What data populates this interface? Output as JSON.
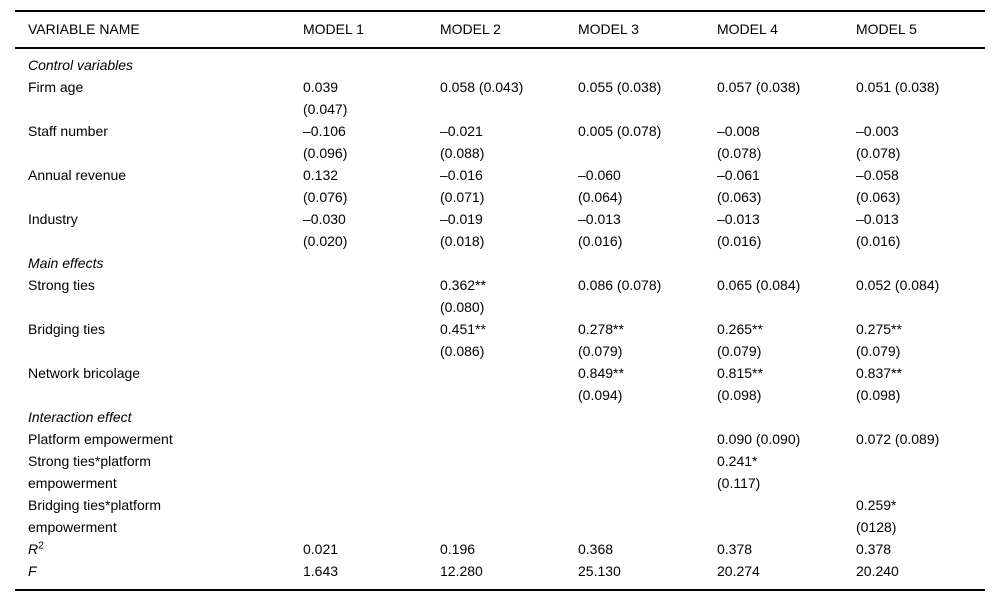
{
  "table": {
    "columns": [
      "VARIABLE NAME",
      "MODEL 1",
      "MODEL 2",
      "MODEL 3",
      "MODEL 4",
      "MODEL 5"
    ],
    "rows": [
      {
        "type": "section",
        "label": "Control variables"
      },
      {
        "type": "data",
        "label": [
          "Firm age"
        ],
        "cells": [
          [
            "0.039",
            "(0.047)"
          ],
          [
            "0.058 (0.043)"
          ],
          [
            "0.055 (0.038)"
          ],
          [
            "0.057 (0.038)"
          ],
          [
            "0.051 (0.038)"
          ]
        ]
      },
      {
        "type": "data",
        "label": [
          "Staff number"
        ],
        "cells": [
          [
            "–0.106",
            "(0.096)"
          ],
          [
            "–0.021",
            "(0.088)"
          ],
          [
            "0.005 (0.078)"
          ],
          [
            "–0.008",
            "(0.078)"
          ],
          [
            "–0.003",
            "(0.078)"
          ]
        ]
      },
      {
        "type": "data",
        "label": [
          "Annual revenue"
        ],
        "cells": [
          [
            "0.132",
            "(0.076)"
          ],
          [
            "–0.016",
            "(0.071)"
          ],
          [
            "–0.060",
            "(0.064)"
          ],
          [
            "–0.061",
            "(0.063)"
          ],
          [
            "–0.058",
            "(0.063)"
          ]
        ]
      },
      {
        "type": "data",
        "label": [
          "Industry"
        ],
        "cells": [
          [
            "–0.030",
            "(0.020)"
          ],
          [
            "–0.019",
            "(0.018)"
          ],
          [
            "–0.013",
            "(0.016)"
          ],
          [
            "–0.013",
            "(0.016)"
          ],
          [
            "–0.013",
            "(0.016)"
          ]
        ]
      },
      {
        "type": "section",
        "label": "Main effects"
      },
      {
        "type": "data",
        "label": [
          "Strong ties"
        ],
        "cells": [
          [],
          [
            "0.362**",
            "(0.080)"
          ],
          [
            "0.086 (0.078)"
          ],
          [
            "0.065 (0.084)"
          ],
          [
            "0.052 (0.084)"
          ]
        ]
      },
      {
        "type": "data",
        "label": [
          "Bridging ties"
        ],
        "cells": [
          [],
          [
            "0.451**",
            "(0.086)"
          ],
          [
            "0.278**",
            "(0.079)"
          ],
          [
            "0.265**",
            "(0.079)"
          ],
          [
            "0.275**",
            "(0.079)"
          ]
        ]
      },
      {
        "type": "data",
        "label": [
          "Network bricolage"
        ],
        "cells": [
          [],
          [],
          [
            "0.849**",
            "(0.094)"
          ],
          [
            "0.815**",
            "(0.098)"
          ],
          [
            "0.837**",
            "(0.098)"
          ]
        ]
      },
      {
        "type": "section",
        "label": "Interaction effect"
      },
      {
        "type": "data",
        "label": [
          "Platform empowerment"
        ],
        "cells": [
          [],
          [],
          [],
          [
            "0.090 (0.090)"
          ],
          [
            "0.072 (0.089)"
          ]
        ]
      },
      {
        "type": "data",
        "label": [
          "Strong ties*platform",
          "empowerment"
        ],
        "cells": [
          [],
          [],
          [],
          [
            "0.241*",
            "(0.117)"
          ],
          []
        ]
      },
      {
        "type": "data",
        "label": [
          "Bridging ties*platform",
          "empowerment"
        ],
        "cells": [
          [],
          [],
          [],
          [],
          [
            "0.259*",
            "(0128)"
          ]
        ]
      },
      {
        "type": "stat",
        "label": "R",
        "sup": "2",
        "cells": [
          [
            "0.021"
          ],
          [
            "0.196"
          ],
          [
            "0.368"
          ],
          [
            "0.378"
          ],
          [
            "0.378"
          ]
        ]
      },
      {
        "type": "stat",
        "label": "F",
        "cells": [
          [
            "1.643"
          ],
          [
            "12.280"
          ],
          [
            "25.130"
          ],
          [
            "20.274"
          ],
          [
            "20.240"
          ]
        ]
      }
    ]
  }
}
